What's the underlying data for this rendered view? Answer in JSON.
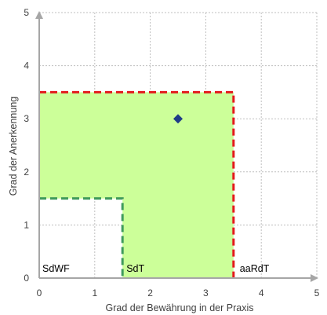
{
  "chart_data": {
    "type": "scatter",
    "title": "",
    "xlabel": "Grad der Bewährung in der Praxis",
    "ylabel": "Grad der Anerkennung",
    "xlim": [
      0,
      5
    ],
    "ylim": [
      0,
      5
    ],
    "x_ticks": [
      "0",
      "1",
      "2",
      "3",
      "4",
      "5"
    ],
    "y_ticks": [
      "0",
      "1",
      "2",
      "3",
      "4",
      "5"
    ],
    "grid": true,
    "legend": "none",
    "points": [
      {
        "x": 2.5,
        "y": 3.0,
        "marker": "diamond",
        "color": "#1f3c88"
      }
    ],
    "regions": [
      {
        "label": "SdWF",
        "x": [
          0,
          1.5
        ],
        "y": [
          0,
          1.5
        ],
        "fill": "#ffffff",
        "border": "#3f9b5b",
        "border_style": "dashed"
      },
      {
        "label": "SdT",
        "polygon": [
          [
            0,
            1.5
          ],
          [
            1.5,
            1.5
          ],
          [
            1.5,
            0
          ],
          [
            3.5,
            0
          ],
          [
            3.5,
            3.5
          ],
          [
            0,
            3.5
          ]
        ],
        "fill": "#ccff99"
      },
      {
        "label": "aaRdT",
        "x": [
          0,
          3.5
        ],
        "y": [
          0,
          3.5
        ],
        "border": "#e31a1c",
        "border_style": "dashed"
      }
    ],
    "colors": {
      "axis": "#a6a6a6",
      "grid": "#bfbfbf",
      "sdt_fill": "#ccff99",
      "sdwf_border": "#3f9b5b",
      "aardt_border": "#e31a1c",
      "marker": "#1f3c88"
    }
  }
}
